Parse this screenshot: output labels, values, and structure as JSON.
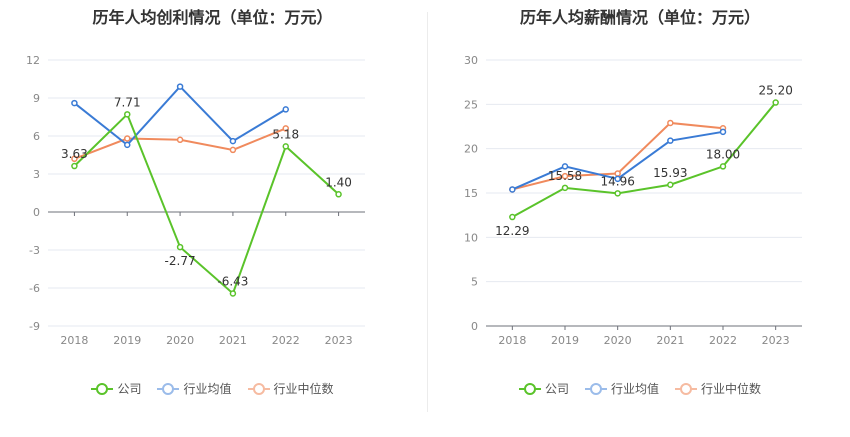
{
  "charts": [
    {
      "title": "历年人均创利情况（单位：万元）"
    },
    {
      "title": "历年人均薪酬情况（单位：万元）"
    }
  ],
  "legend": [
    {
      "name": "公司",
      "color": "#5ac32a"
    },
    {
      "name": "行业均值",
      "color": "#3a7bd5"
    },
    {
      "name": "行业中位数",
      "color": "#f08a5d"
    }
  ],
  "chart_data": [
    {
      "type": "line",
      "title": "历年人均创利情况（单位：万元）",
      "categories": [
        "2018",
        "2019",
        "2020",
        "2021",
        "2022",
        "2023"
      ],
      "ylim": [
        -9,
        12
      ],
      "yticks": [
        12,
        9,
        6,
        3,
        0,
        -3,
        -6,
        -9
      ],
      "grid": true,
      "legend_position": "bottom",
      "series": [
        {
          "name": "公司",
          "color": "#5ac32a",
          "values": [
            3.63,
            7.71,
            -2.77,
            -6.43,
            5.18,
            1.4
          ],
          "labels": [
            "3.63",
            "7.71",
            "-2.77",
            "-6.43",
            "5.18",
            "1.40"
          ]
        },
        {
          "name": "行业均值",
          "color": "#3a7bd5",
          "values": [
            8.6,
            5.3,
            9.9,
            5.6,
            8.1,
            null
          ]
        },
        {
          "name": "行业中位数",
          "color": "#f08a5d",
          "values": [
            4.2,
            5.8,
            5.7,
            4.9,
            6.6,
            null
          ]
        }
      ]
    },
    {
      "type": "line",
      "title": "历年人均薪酬情况（单位：万元）",
      "categories": [
        "2018",
        "2019",
        "2020",
        "2021",
        "2022",
        "2023"
      ],
      "ylim": [
        0,
        30
      ],
      "yticks": [
        30,
        25,
        20,
        15,
        10,
        5,
        0
      ],
      "grid": true,
      "legend_position": "bottom",
      "series": [
        {
          "name": "公司",
          "color": "#5ac32a",
          "values": [
            12.29,
            15.58,
            14.96,
            15.93,
            18.0,
            25.2
          ],
          "labels": [
            "12.29",
            "15.58",
            "14.96",
            "15.93",
            "18.00",
            "25.20"
          ]
        },
        {
          "name": "行业均值",
          "color": "#3a7bd5",
          "values": [
            15.4,
            18.0,
            16.6,
            20.9,
            21.9,
            null
          ]
        },
        {
          "name": "行业中位数",
          "color": "#f08a5d",
          "values": [
            15.4,
            16.9,
            17.2,
            22.9,
            22.3,
            null
          ]
        }
      ]
    }
  ]
}
